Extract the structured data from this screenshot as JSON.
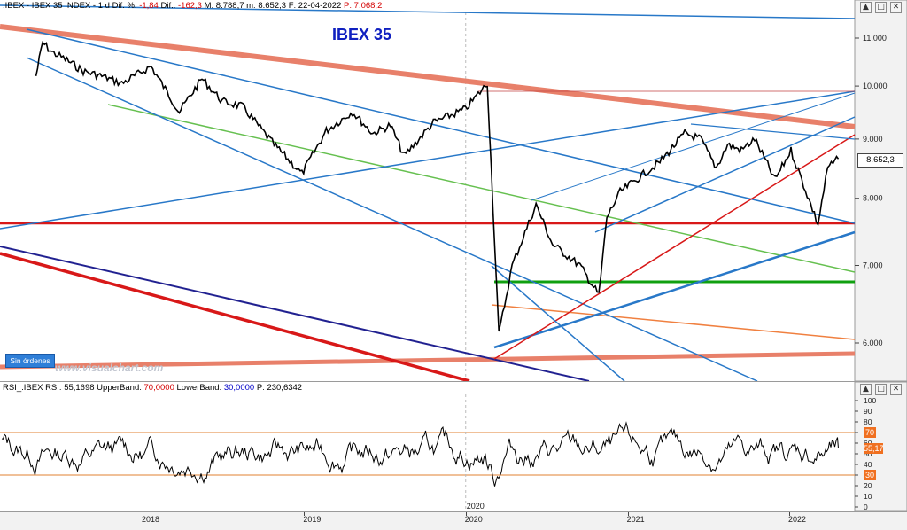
{
  "header": {
    "instrument": ".IBEX - IBEX 35 INDEX - 1 d",
    "dif_pct_label": "Dif. %:",
    "dif_pct_value": "-1,84",
    "dif_label": "Dif.:",
    "dif_value": "-162,3",
    "max_label": "M:",
    "max_value": "8.788,7",
    "min_label": "m:",
    "min_value": "8.652,3",
    "date_label": "F:",
    "date_value": "22-04-2022",
    "price_label": "P:",
    "price_value": "7.068,2"
  },
  "rsi_header": {
    "name": "RSI_.IBEX",
    "rsi_label": "RSI:",
    "rsi_value": "55,1698",
    "upper_label": "UpperBand:",
    "upper_value": "70,0000",
    "lower_label": "LowerBand:",
    "lower_value": "30,0000",
    "p_label": "P:",
    "p_value": "230,6342"
  },
  "window_buttons": [
    "▲",
    "□",
    "✕"
  ],
  "orders_button": "Sin órdenes",
  "watermark": "www.visualchart.com",
  "colors": {
    "price": "#000000",
    "resistance_thick": "#e8806a",
    "trend_blue": "#2878c8",
    "horizontal_red": "#d81818",
    "horizontal_green": "#10a010",
    "thin_green": "#66c050",
    "dark_blue": "#202090",
    "orange_thin": "#f08040",
    "rsi_bands": "#e08030",
    "rsi_upper_badge": "#f07020",
    "rsi_lower_badge": "#f07020",
    "title": "#1020c0"
  },
  "chart_data": [
    {
      "type": "line",
      "title": "IBEX 35",
      "series": [],
      "y_ticks": [
        "11.000",
        "10.000",
        "9.000",
        "8.000",
        "7.000",
        "6.000"
      ],
      "y_tick_values": [
        11000,
        10000,
        9000,
        8000,
        7000,
        6000
      ],
      "last_price_label": "8.652,3",
      "scale": "log",
      "x_ticks": [
        "2018",
        "2019",
        "2020",
        "2021",
        "2022"
      ],
      "price_path": [
        [
          "2017-05-05",
          10200
        ],
        [
          "2017-05-20",
          10900
        ],
        [
          "2017-06-10",
          10700
        ],
        [
          "2017-07-10",
          10550
        ],
        [
          "2017-08-20",
          10300
        ],
        [
          "2017-10-01",
          10200
        ],
        [
          "2017-11-15",
          10050
        ],
        [
          "2018-01-20",
          10400
        ],
        [
          "2018-03-25",
          9500
        ],
        [
          "2018-05-15",
          10150
        ],
        [
          "2018-06-30",
          9700
        ],
        [
          "2018-08-15",
          9600
        ],
        [
          "2018-10-25",
          8900
        ],
        [
          "2018-12-27",
          8400
        ],
        [
          "2019-02-20",
          9150
        ],
        [
          "2019-04-20",
          9500
        ],
        [
          "2019-06-05",
          9100
        ],
        [
          "2019-07-15",
          9250
        ],
        [
          "2019-08-15",
          8700
        ],
        [
          "2019-10-20",
          9300
        ],
        [
          "2019-12-31",
          9550
        ],
        [
          "2020-02-19",
          10050
        ],
        [
          "2020-03-16",
          6100
        ],
        [
          "2020-04-15",
          7000
        ],
        [
          "2020-06-08",
          7900
        ],
        [
          "2020-07-15",
          7300
        ],
        [
          "2020-09-15",
          7000
        ],
        [
          "2020-10-28",
          6600
        ],
        [
          "2020-11-15",
          7700
        ],
        [
          "2020-12-15",
          8100
        ],
        [
          "2021-01-20",
          8300
        ],
        [
          "2021-03-15",
          8600
        ],
        [
          "2021-05-10",
          9100
        ],
        [
          "2021-06-15",
          9000
        ],
        [
          "2021-07-20",
          8500
        ],
        [
          "2021-08-15",
          8900
        ],
        [
          "2021-09-15",
          8800
        ],
        [
          "2021-10-15",
          9000
        ],
        [
          "2021-11-30",
          8300
        ],
        [
          "2022-01-05",
          8800
        ],
        [
          "2022-03-07",
          7600
        ],
        [
          "2022-03-29",
          8500
        ],
        [
          "2022-04-22",
          8652
        ]
      ]
    },
    {
      "type": "line",
      "title": "",
      "series": [
        {
          "name": "RSI",
          "last_value": 55.17
        }
      ],
      "y_ticks": [
        "100",
        "90",
        "80",
        "70",
        "60",
        "50",
        "40",
        "30",
        "20",
        "10",
        "0"
      ],
      "upper_band": 70,
      "lower_band": 30,
      "upper_badge": "70",
      "value_badge": "55,17",
      "lower_badge": "30"
    }
  ]
}
